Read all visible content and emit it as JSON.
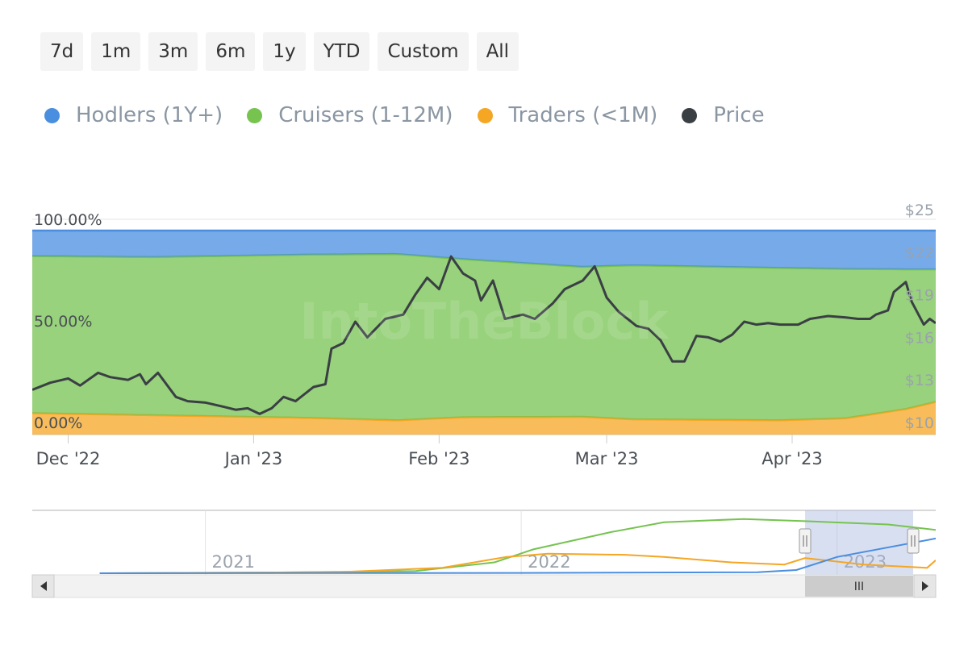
{
  "range_selector": {
    "buttons": [
      "7d",
      "1m",
      "3m",
      "6m",
      "1y",
      "YTD",
      "Custom",
      "All"
    ]
  },
  "legend": [
    {
      "label": "Hodlers (1Y+)",
      "color": "#4a8ee0"
    },
    {
      "label": "Cruisers (1-12M)",
      "color": "#76c350"
    },
    {
      "label": "Traders (<1M)",
      "color": "#f5a623"
    },
    {
      "label": "Price",
      "color": "#3a3f44"
    }
  ],
  "chart_data": {
    "type": "area",
    "stacked": true,
    "x_tick_labels": [
      "Dec '22",
      "Jan '23",
      "Feb '23",
      "Mar '23",
      "Apr '23"
    ],
    "left_axis": {
      "tick_labels": [
        "100.00%",
        "50.00%",
        "0.00%"
      ],
      "ylim": [
        0,
        100
      ]
    },
    "right_axis": {
      "tick_labels": [
        "$25",
        "$22",
        "$19",
        "$16",
        "$13",
        "$10"
      ],
      "ylim": [
        10,
        25
      ]
    },
    "x_range": [
      "2022-11-25",
      "2023-04-25"
    ],
    "watermark": "IntoTheBlock",
    "series": [
      {
        "name": "Traders (<1M)",
        "color": "#f5a623",
        "points": [
          [
            "2022-11-25",
            10.5
          ],
          [
            "2022-12-15",
            9.5
          ],
          [
            "2023-01-10",
            8.2
          ],
          [
            "2023-01-25",
            7.0
          ],
          [
            "2023-02-05",
            8.5
          ],
          [
            "2023-02-25",
            8.7
          ],
          [
            "2023-03-05",
            7.5
          ],
          [
            "2023-03-30",
            7.0
          ],
          [
            "2023-04-10",
            8.0
          ],
          [
            "2023-04-20",
            12.5
          ],
          [
            "2023-04-25",
            16.0
          ]
        ]
      },
      {
        "name": "Cruisers (1-12M)",
        "color": "#76c350",
        "points": [
          [
            "2022-11-25",
            77.0
          ],
          [
            "2022-12-15",
            77.5
          ],
          [
            "2023-01-10",
            80.0
          ],
          [
            "2023-01-25",
            81.5
          ],
          [
            "2023-02-05",
            77.5
          ],
          [
            "2023-02-25",
            73.5
          ],
          [
            "2023-03-05",
            75.5
          ],
          [
            "2023-03-30",
            74.7
          ],
          [
            "2023-04-10",
            73.2
          ],
          [
            "2023-04-20",
            68.5
          ],
          [
            "2023-04-25",
            65.0
          ]
        ]
      },
      {
        "name": "Hodlers (1Y+)",
        "color": "#4a8ee0",
        "points": [
          [
            "2022-11-25",
            12.5
          ],
          [
            "2022-12-15",
            13.0
          ],
          [
            "2023-01-10",
            11.8
          ],
          [
            "2023-01-25",
            11.5
          ],
          [
            "2023-02-05",
            14.0
          ],
          [
            "2023-02-25",
            17.8
          ],
          [
            "2023-03-05",
            17.0
          ],
          [
            "2023-03-30",
            18.3
          ],
          [
            "2023-04-10",
            18.8
          ],
          [
            "2023-04-20",
            19.0
          ],
          [
            "2023-04-25",
            19.0
          ]
        ]
      }
    ],
    "price_series": {
      "name": "Price",
      "color": "#3a3f44",
      "points": [
        [
          "2022-11-25",
          12.3
        ],
        [
          "2022-11-28",
          12.8
        ],
        [
          "2022-12-01",
          13.1
        ],
        [
          "2022-12-03",
          12.6
        ],
        [
          "2022-12-06",
          13.5
        ],
        [
          "2022-12-08",
          13.2
        ],
        [
          "2022-12-11",
          13.0
        ],
        [
          "2022-12-13",
          13.4
        ],
        [
          "2022-12-14",
          12.7
        ],
        [
          "2022-12-16",
          13.5
        ],
        [
          "2022-12-19",
          11.8
        ],
        [
          "2022-12-21",
          11.5
        ],
        [
          "2022-12-24",
          11.4
        ],
        [
          "2022-12-27",
          11.1
        ],
        [
          "2022-12-29",
          10.9
        ],
        [
          "2022-12-31",
          11.0
        ],
        [
          "2023-01-02",
          10.6
        ],
        [
          "2023-01-04",
          11.0
        ],
        [
          "2023-01-06",
          11.8
        ],
        [
          "2023-01-08",
          11.5
        ],
        [
          "2023-01-11",
          12.5
        ],
        [
          "2023-01-13",
          12.7
        ],
        [
          "2023-01-14",
          15.2
        ],
        [
          "2023-01-16",
          15.6
        ],
        [
          "2023-01-18",
          17.1
        ],
        [
          "2023-01-20",
          16.0
        ],
        [
          "2023-01-23",
          17.3
        ],
        [
          "2023-01-26",
          17.6
        ],
        [
          "2023-01-28",
          19.0
        ],
        [
          "2023-01-30",
          20.2
        ],
        [
          "2023-02-01",
          19.4
        ],
        [
          "2023-02-03",
          21.7
        ],
        [
          "2023-02-05",
          20.5
        ],
        [
          "2023-02-07",
          20.0
        ],
        [
          "2023-02-08",
          18.6
        ],
        [
          "2023-02-10",
          20.0
        ],
        [
          "2023-02-12",
          17.3
        ],
        [
          "2023-02-15",
          17.6
        ],
        [
          "2023-02-17",
          17.3
        ],
        [
          "2023-02-20",
          18.4
        ],
        [
          "2023-02-22",
          19.4
        ],
        [
          "2023-02-25",
          20.0
        ],
        [
          "2023-02-27",
          21.0
        ],
        [
          "2023-03-01",
          18.8
        ],
        [
          "2023-03-03",
          17.8
        ],
        [
          "2023-03-06",
          16.8
        ],
        [
          "2023-03-08",
          16.6
        ],
        [
          "2023-03-10",
          15.8
        ],
        [
          "2023-03-12",
          14.3
        ],
        [
          "2023-03-14",
          14.3
        ],
        [
          "2023-03-16",
          16.1
        ],
        [
          "2023-03-18",
          16.0
        ],
        [
          "2023-03-20",
          15.7
        ],
        [
          "2023-03-22",
          16.2
        ],
        [
          "2023-03-24",
          17.1
        ],
        [
          "2023-03-26",
          16.9
        ],
        [
          "2023-03-28",
          17.0
        ],
        [
          "2023-03-30",
          16.9
        ],
        [
          "2023-04-02",
          16.9
        ],
        [
          "2023-04-04",
          17.3
        ],
        [
          "2023-04-07",
          17.5
        ],
        [
          "2023-04-10",
          17.4
        ],
        [
          "2023-04-12",
          17.3
        ],
        [
          "2023-04-14",
          17.3
        ],
        [
          "2023-04-15",
          17.6
        ],
        [
          "2023-04-17",
          17.9
        ],
        [
          "2023-04-18",
          19.2
        ],
        [
          "2023-04-20",
          19.9
        ],
        [
          "2023-04-21",
          18.5
        ],
        [
          "2023-04-23",
          16.9
        ],
        [
          "2023-04-24",
          17.3
        ],
        [
          "2023-04-25",
          17.0
        ]
      ]
    }
  },
  "navigator": {
    "year_labels": [
      "2021",
      "2022",
      "2023"
    ],
    "series": [
      {
        "name": "Cruisers (1-12M)",
        "color": "#76c350",
        "points": [
          [
            "2020-09-01",
            0
          ],
          [
            "2021-03-01",
            0.5
          ],
          [
            "2021-09-01",
            2
          ],
          [
            "2021-12-01",
            10
          ],
          [
            "2022-01-15",
            22
          ],
          [
            "2022-04-15",
            38
          ],
          [
            "2022-06-15",
            47
          ],
          [
            "2022-09-15",
            50
          ],
          [
            "2022-11-25",
            48
          ],
          [
            "2023-03-01",
            45
          ],
          [
            "2023-04-25",
            40
          ]
        ]
      },
      {
        "name": "Traders (<1M)",
        "color": "#f5a623",
        "points": [
          [
            "2020-09-01",
            0
          ],
          [
            "2021-06-01",
            1
          ],
          [
            "2021-10-01",
            5
          ],
          [
            "2021-12-15",
            15
          ],
          [
            "2022-02-01",
            18
          ],
          [
            "2022-05-01",
            17
          ],
          [
            "2022-06-15",
            15
          ],
          [
            "2022-09-01",
            10
          ],
          [
            "2022-11-01",
            8
          ],
          [
            "2022-11-25",
            14
          ],
          [
            "2023-02-01",
            8
          ],
          [
            "2023-04-15",
            5
          ],
          [
            "2023-04-25",
            12
          ]
        ]
      },
      {
        "name": "Hodlers (1Y+)",
        "color": "#4a8ee0",
        "points": [
          [
            "2020-09-01",
            0
          ],
          [
            "2022-01-01",
            0.3
          ],
          [
            "2022-10-01",
            1
          ],
          [
            "2022-11-15",
            3
          ],
          [
            "2023-01-01",
            15
          ],
          [
            "2023-04-25",
            32
          ]
        ]
      }
    ],
    "selection_start": "2022-11-25",
    "selection_end": "2023-04-25",
    "scroll_handle_label": "III"
  }
}
